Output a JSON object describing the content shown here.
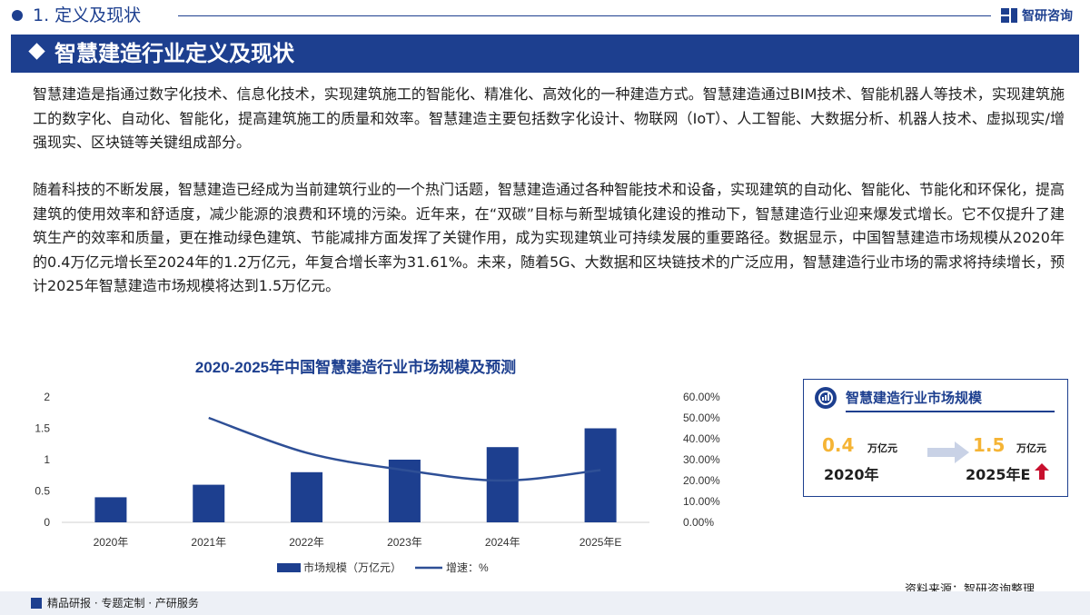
{
  "header": {
    "section_label": "1. 定义及现状",
    "logo_text": "智研咨询",
    "title": "智慧建造行业定义及现状"
  },
  "paragraphs": [
    "智慧建造是指通过数字化技术、信息化技术，实现建筑施工的智能化、精准化、高效化的一种建造方式。智慧建造通过BIM技术、智能机器人等技术，实现建筑施工的数字化、自动化、智能化，提高建筑施工的质量和效率。智慧建造主要包括数字化设计、物联网（IoT）、人工智能、大数据分析、机器人技术、虚拟现实/增强现实、区块链等关键组成部分。",
    "随着科技的不断发展，智慧建造已经成为当前建筑行业的一个热门话题，智慧建造通过各种智能技术和设备，实现建筑的自动化、智能化、节能化和环保化，提高建筑的使用效率和舒适度，减少能源的浪费和环境的污染。近年来，在“双碳”目标与新型城镇化建设的推动下，智慧建造行业迎来爆发式增长。它不仅提升了建筑生产的效率和质量，更在推动绿色建筑、节能减排方面发挥了关键作用，成为实现建筑业可持续发展的重要路径。数据显示，中国智慧建造市场规模从2020年的0.4万亿元增长至2024年的1.2万亿元，年复合增长率为31.61%。未来，随着5G、大数据和区块链技术的广泛应用，智慧建造行业市场的需求将持续增长，预计2025年智慧建造市场规模将达到1.5万亿元。"
  ],
  "chart_data": {
    "type": "bar",
    "title": "2020-2025年中国智慧建造行业市场规模及预测",
    "categories": [
      "2020年",
      "2021年",
      "2022年",
      "2023年",
      "2024年",
      "2025年E"
    ],
    "series": [
      {
        "name": "市场规模（万亿元）",
        "type": "bar",
        "axis": "left",
        "values": [
          0.4,
          0.6,
          0.8,
          1.0,
          1.2,
          1.5
        ]
      },
      {
        "name": "增速：%",
        "type": "line",
        "axis": "right",
        "values": [
          null,
          50.0,
          33.3,
          25.0,
          20.0,
          25.0
        ]
      }
    ],
    "ylim_left": [
      0,
      2
    ],
    "yticks_left": [
      "0",
      "0.5",
      "1",
      "1.5",
      "2"
    ],
    "ylim_right": [
      0,
      60
    ],
    "yticks_right": [
      "0.00%",
      "10.00%",
      "20.00%",
      "30.00%",
      "40.00%",
      "50.00%",
      "60.00%"
    ],
    "grid": false,
    "legend_position": "bottom",
    "colors": {
      "bar": "#1d3f8f",
      "line": "#2e4f96"
    }
  },
  "card": {
    "title": "智慧建造行业市场规模",
    "left_value": "0.4",
    "left_unit": "万亿元",
    "left_year": "2020年",
    "right_value": "1.5",
    "right_unit": "万亿元",
    "right_year": "2025年E"
  },
  "source": "资料来源：智研咨询整理",
  "footer": {
    "text": "精品研报 · 专题定制 · 产研服务"
  },
  "colors": {
    "brand": "#1d3f8f",
    "accent": "#f5b435",
    "up_arrow": "#c8102e"
  }
}
